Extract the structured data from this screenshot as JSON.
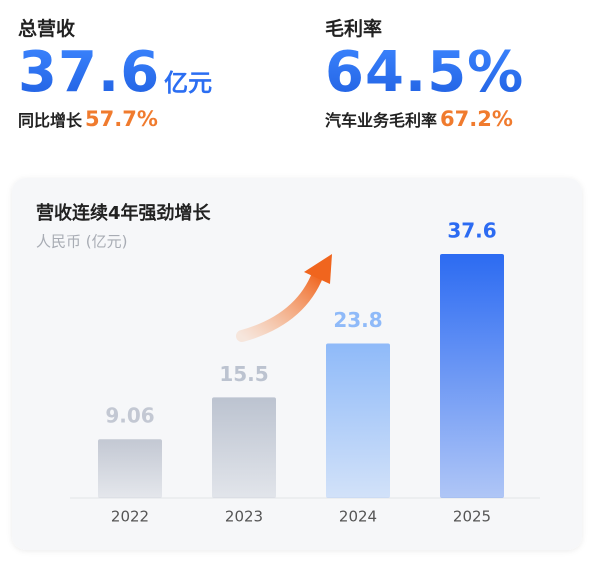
{
  "kpis": [
    {
      "label": "总营收",
      "value": "37.6",
      "unit": "亿元",
      "sub_label": "同比增长",
      "sub_value": "57.7%"
    },
    {
      "label": "毛利率",
      "value": "64.5%",
      "sub_label": "汽车业务毛利率",
      "sub_value": "67.2%"
    }
  ],
  "chart_data": {
    "type": "bar",
    "title": "营收连续4年强劲增长",
    "subtitle": "人民币 (亿元)",
    "categories": [
      "2022",
      "2023",
      "2024",
      "2025"
    ],
    "values": [
      9.06,
      15.5,
      23.8,
      37.6
    ],
    "colors": [
      "#c3c8d3",
      "#bcc3d0",
      "#8fbaf9",
      "#2c6bf2"
    ]
  }
}
